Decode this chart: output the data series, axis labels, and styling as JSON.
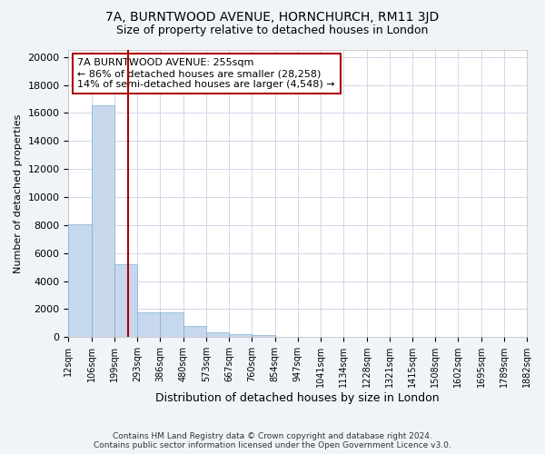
{
  "title1": "7A, BURNTWOOD AVENUE, HORNCHURCH, RM11 3JD",
  "title2": "Size of property relative to detached houses in London",
  "xlabel": "Distribution of detached houses by size in London",
  "ylabel": "Number of detached properties",
  "bar_values": [
    8050,
    16550,
    5200,
    1750,
    1750,
    800,
    350,
    200,
    150,
    0,
    0,
    0,
    0,
    0,
    0,
    0,
    0,
    0,
    0,
    0
  ],
  "bin_edges": [
    12,
    106,
    199,
    293,
    386,
    480,
    573,
    667,
    760,
    854,
    947,
    1041,
    1134,
    1228,
    1321,
    1415,
    1508,
    1602,
    1695,
    1789,
    1882
  ],
  "xtick_labels": [
    "12sqm",
    "106sqm",
    "199sqm",
    "293sqm",
    "386sqm",
    "480sqm",
    "573sqm",
    "667sqm",
    "760sqm",
    "854sqm",
    "947sqm",
    "1041sqm",
    "1134sqm",
    "1228sqm",
    "1321sqm",
    "1415sqm",
    "1508sqm",
    "1602sqm",
    "1695sqm",
    "1789sqm",
    "1882sqm"
  ],
  "property_sqm": 255,
  "bar_color": "#c8d8ec",
  "bar_edge_color": "#7aafd4",
  "property_line_color": "#aa0000",
  "annotation_text": "7A BURNTWOOD AVENUE: 255sqm\n← 86% of detached houses are smaller (28,258)\n14% of semi-detached houses are larger (4,548) →",
  "annotation_box_color": "#ffffff",
  "annotation_box_edge_color": "#aa0000",
  "ylim": [
    0,
    20500
  ],
  "yticks": [
    0,
    2000,
    4000,
    6000,
    8000,
    10000,
    12000,
    14000,
    16000,
    18000,
    20000
  ],
  "footnote": "Contains HM Land Registry data © Crown copyright and database right 2024.\nContains public sector information licensed under the Open Government Licence v3.0.",
  "bg_color": "#f0f4f8",
  "plot_bg_color": "#ffffff",
  "grid_color": "#d0d8e8"
}
